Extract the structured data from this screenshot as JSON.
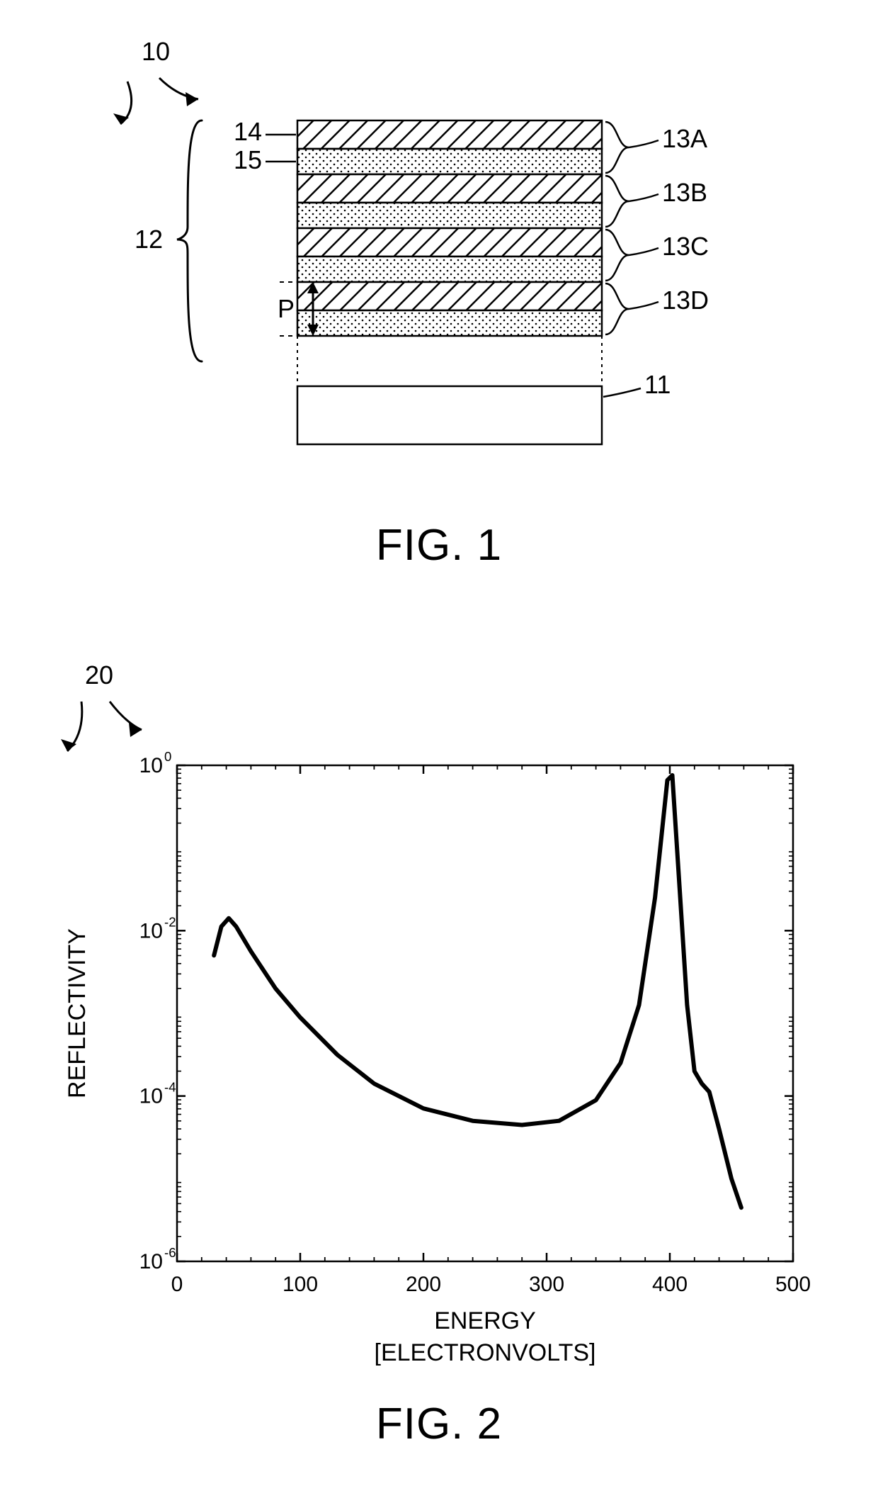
{
  "fig1": {
    "caption": "FIG. 1",
    "overall_ref": "10",
    "stack_ref": "12",
    "layer_hatch_ref": "14",
    "layer_dot_ref": "15",
    "period_label": "P",
    "pair_refs": [
      "13A",
      "13B",
      "13C",
      "13D"
    ],
    "substrate_ref": "11",
    "hatch_fill": "#000000",
    "dot_fill": "#000000",
    "stroke": "#000000",
    "stroke_width": 2.5,
    "font_size": 36
  },
  "fig2": {
    "caption": "FIG. 2",
    "overall_ref": "20",
    "xlabel_line1": "ENERGY",
    "xlabel_line2": "[ELECTRONVOLTS]",
    "ylabel": "REFLECTIVITY",
    "type": "line",
    "xlim": [
      0,
      500
    ],
    "xtick_step": 100,
    "xtick_labels": [
      "0",
      "100",
      "200",
      "300",
      "400",
      "500"
    ],
    "ylim_log": [
      -6,
      0
    ],
    "ytick_exponents": [
      -6,
      -4,
      -2,
      0
    ],
    "ytick_labels": [
      "10",
      "10",
      "10",
      "10"
    ],
    "line_color": "#000000",
    "line_width": 6,
    "axis_color": "#000000",
    "axis_width": 2.5,
    "tick_len": 12,
    "minor_tick_len": 6,
    "background": "#ffffff",
    "label_fontsize": 34,
    "tick_fontsize": 30,
    "series": [
      {
        "x": 30,
        "logy": -2.3
      },
      {
        "x": 36,
        "logy": -1.95
      },
      {
        "x": 42,
        "logy": -1.85
      },
      {
        "x": 48,
        "logy": -1.95
      },
      {
        "x": 60,
        "logy": -2.25
      },
      {
        "x": 80,
        "logy": -2.7
      },
      {
        "x": 100,
        "logy": -3.05
      },
      {
        "x": 130,
        "logy": -3.5
      },
      {
        "x": 160,
        "logy": -3.85
      },
      {
        "x": 200,
        "logy": -4.15
      },
      {
        "x": 240,
        "logy": -4.3
      },
      {
        "x": 280,
        "logy": -4.35
      },
      {
        "x": 310,
        "logy": -4.3
      },
      {
        "x": 340,
        "logy": -4.05
      },
      {
        "x": 360,
        "logy": -3.6
      },
      {
        "x": 375,
        "logy": -2.9
      },
      {
        "x": 388,
        "logy": -1.6
      },
      {
        "x": 398,
        "logy": -0.18
      },
      {
        "x": 402,
        "logy": -0.12
      },
      {
        "x": 408,
        "logy": -1.5
      },
      {
        "x": 414,
        "logy": -2.9
      },
      {
        "x": 420,
        "logy": -3.7
      },
      {
        "x": 426,
        "logy": -3.85
      },
      {
        "x": 432,
        "logy": -3.95
      },
      {
        "x": 440,
        "logy": -4.4
      },
      {
        "x": 450,
        "logy": -5.0
      },
      {
        "x": 458,
        "logy": -5.35
      }
    ]
  }
}
